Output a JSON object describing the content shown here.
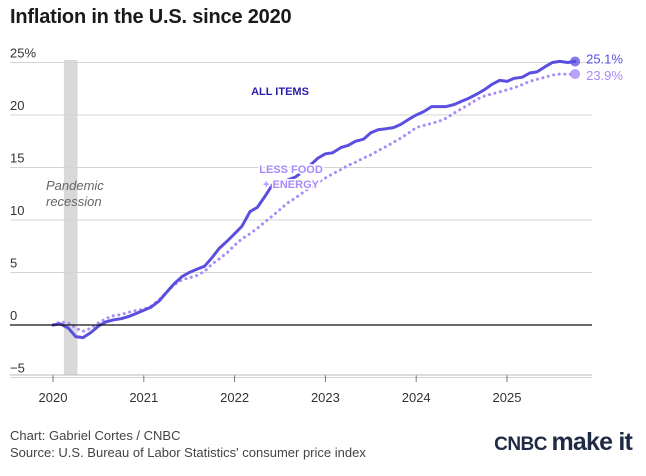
{
  "title": "Inflation in the U.S. since 2020",
  "footer": {
    "credit": "Chart: Gabriel Cortes / CNBC",
    "source": "Source: U.S. Bureau of Labor Statistics' consumer price index"
  },
  "brand": {
    "part1": "CNBC",
    "part2": "make it"
  },
  "chart_data": {
    "type": "line",
    "title": "Inflation in the U.S. since 2020",
    "xlabel": "",
    "ylabel": "",
    "ylim": [
      -5,
      25
    ],
    "xlim": [
      2020.0,
      2026.0
    ],
    "y_ticks": [
      25,
      20,
      15,
      10,
      5,
      0,
      -5
    ],
    "y_tick_labels": [
      "25%",
      "20",
      "15",
      "10",
      "5",
      "0",
      "−5"
    ],
    "x_ticks": [
      2020,
      2021,
      2022,
      2023,
      2024,
      2025
    ],
    "x_tick_labels": [
      "2020",
      "2021",
      "2022",
      "2023",
      "2024",
      "2025"
    ],
    "grid": true,
    "shaded_region": {
      "label": "Pandemic recession",
      "x_start": 2020.12,
      "x_end": 2020.27
    },
    "series": [
      {
        "name": "ALL ITEMS",
        "style": "solid",
        "color": "#5b4fe0",
        "end_label": "25.1%",
        "points": [
          [
            2020.0,
            0.0
          ],
          [
            2020.08,
            0.1
          ],
          [
            2020.17,
            -0.3
          ],
          [
            2020.25,
            -1.1
          ],
          [
            2020.33,
            -1.2
          ],
          [
            2020.42,
            -0.7
          ],
          [
            2020.5,
            -0.1
          ],
          [
            2020.58,
            0.3
          ],
          [
            2020.67,
            0.5
          ],
          [
            2020.75,
            0.6
          ],
          [
            2020.83,
            0.8
          ],
          [
            2020.92,
            1.1
          ],
          [
            2021.0,
            1.4
          ],
          [
            2021.08,
            1.7
          ],
          [
            2021.17,
            2.3
          ],
          [
            2021.25,
            3.1
          ],
          [
            2021.33,
            3.9
          ],
          [
            2021.42,
            4.6
          ],
          [
            2021.5,
            5.0
          ],
          [
            2021.58,
            5.3
          ],
          [
            2021.67,
            5.6
          ],
          [
            2021.75,
            6.4
          ],
          [
            2021.83,
            7.3
          ],
          [
            2021.92,
            8.0
          ],
          [
            2022.0,
            8.7
          ],
          [
            2022.08,
            9.4
          ],
          [
            2022.17,
            10.8
          ],
          [
            2022.25,
            11.2
          ],
          [
            2022.33,
            12.2
          ],
          [
            2022.42,
            13.4
          ],
          [
            2022.5,
            13.5
          ],
          [
            2022.58,
            13.8
          ],
          [
            2022.67,
            14.1
          ],
          [
            2022.75,
            14.6
          ],
          [
            2022.83,
            15.2
          ],
          [
            2022.92,
            15.9
          ],
          [
            2023.0,
            16.3
          ],
          [
            2023.08,
            16.4
          ],
          [
            2023.17,
            16.9
          ],
          [
            2023.25,
            17.1
          ],
          [
            2023.33,
            17.5
          ],
          [
            2023.42,
            17.7
          ],
          [
            2023.5,
            18.3
          ],
          [
            2023.58,
            18.6
          ],
          [
            2023.67,
            18.7
          ],
          [
            2023.75,
            18.8
          ],
          [
            2023.83,
            19.1
          ],
          [
            2023.92,
            19.6
          ],
          [
            2024.0,
            20.0
          ],
          [
            2024.08,
            20.3
          ],
          [
            2024.17,
            20.8
          ],
          [
            2024.25,
            20.8
          ],
          [
            2024.33,
            20.8
          ],
          [
            2024.42,
            21.0
          ],
          [
            2024.5,
            21.3
          ],
          [
            2024.58,
            21.6
          ],
          [
            2024.67,
            22.0
          ],
          [
            2024.75,
            22.4
          ],
          [
            2024.83,
            22.9
          ],
          [
            2024.92,
            23.3
          ],
          [
            2025.0,
            23.2
          ],
          [
            2025.08,
            23.5
          ],
          [
            2025.17,
            23.6
          ],
          [
            2025.25,
            24.0
          ],
          [
            2025.33,
            24.1
          ],
          [
            2025.42,
            24.6
          ],
          [
            2025.5,
            25.0
          ],
          [
            2025.58,
            25.1
          ],
          [
            2025.67,
            25.0
          ],
          [
            2025.75,
            25.1
          ]
        ]
      },
      {
        "name": "LESS FOOD + ENERGY",
        "style": "dotted",
        "color": "#a78bfa",
        "end_label": "23.9%",
        "points": [
          [
            2020.0,
            0.0
          ],
          [
            2020.08,
            0.3
          ],
          [
            2020.17,
            0.2
          ],
          [
            2020.25,
            -0.3
          ],
          [
            2020.33,
            -0.6
          ],
          [
            2020.42,
            -0.3
          ],
          [
            2020.5,
            0.2
          ],
          [
            2020.58,
            0.6
          ],
          [
            2020.67,
            0.9
          ],
          [
            2020.75,
            1.0
          ],
          [
            2020.83,
            1.2
          ],
          [
            2020.92,
            1.4
          ],
          [
            2021.0,
            1.5
          ],
          [
            2021.08,
            1.8
          ],
          [
            2021.17,
            2.4
          ],
          [
            2021.25,
            3.1
          ],
          [
            2021.33,
            3.8
          ],
          [
            2021.42,
            4.3
          ],
          [
            2021.5,
            4.5
          ],
          [
            2021.58,
            4.7
          ],
          [
            2021.67,
            5.1
          ],
          [
            2021.75,
            5.8
          ],
          [
            2021.83,
            6.3
          ],
          [
            2021.92,
            6.9
          ],
          [
            2022.0,
            7.6
          ],
          [
            2022.08,
            8.2
          ],
          [
            2022.17,
            8.7
          ],
          [
            2022.25,
            9.2
          ],
          [
            2022.33,
            9.8
          ],
          [
            2022.42,
            10.4
          ],
          [
            2022.5,
            11.0
          ],
          [
            2022.58,
            11.6
          ],
          [
            2022.67,
            12.1
          ],
          [
            2022.75,
            12.6
          ],
          [
            2022.83,
            13.1
          ],
          [
            2022.92,
            13.6
          ],
          [
            2023.0,
            14.0
          ],
          [
            2023.08,
            14.4
          ],
          [
            2023.17,
            14.8
          ],
          [
            2023.25,
            15.2
          ],
          [
            2023.33,
            15.5
          ],
          [
            2023.42,
            15.9
          ],
          [
            2023.5,
            16.2
          ],
          [
            2023.58,
            16.6
          ],
          [
            2023.67,
            17.0
          ],
          [
            2023.75,
            17.4
          ],
          [
            2023.83,
            17.8
          ],
          [
            2023.92,
            18.3
          ],
          [
            2024.0,
            18.8
          ],
          [
            2024.08,
            19.0
          ],
          [
            2024.17,
            19.2
          ],
          [
            2024.25,
            19.4
          ],
          [
            2024.33,
            19.7
          ],
          [
            2024.42,
            20.2
          ],
          [
            2024.5,
            20.6
          ],
          [
            2024.58,
            21.0
          ],
          [
            2024.67,
            21.5
          ],
          [
            2024.75,
            21.8
          ],
          [
            2024.83,
            22.0
          ],
          [
            2024.92,
            22.2
          ],
          [
            2025.0,
            22.4
          ],
          [
            2025.08,
            22.6
          ],
          [
            2025.17,
            22.9
          ],
          [
            2025.25,
            23.2
          ],
          [
            2025.33,
            23.4
          ],
          [
            2025.42,
            23.6
          ],
          [
            2025.5,
            23.8
          ],
          [
            2025.58,
            23.9
          ],
          [
            2025.67,
            23.9
          ],
          [
            2025.75,
            23.9
          ]
        ]
      }
    ]
  },
  "colors": {
    "all_items": "#5b4fe0",
    "core": "#a78bfa",
    "all_items_label": "#2a1fa8",
    "recession": "#d9d9d9",
    "grid": "#d4d4d4",
    "zero_line": "#111111"
  }
}
